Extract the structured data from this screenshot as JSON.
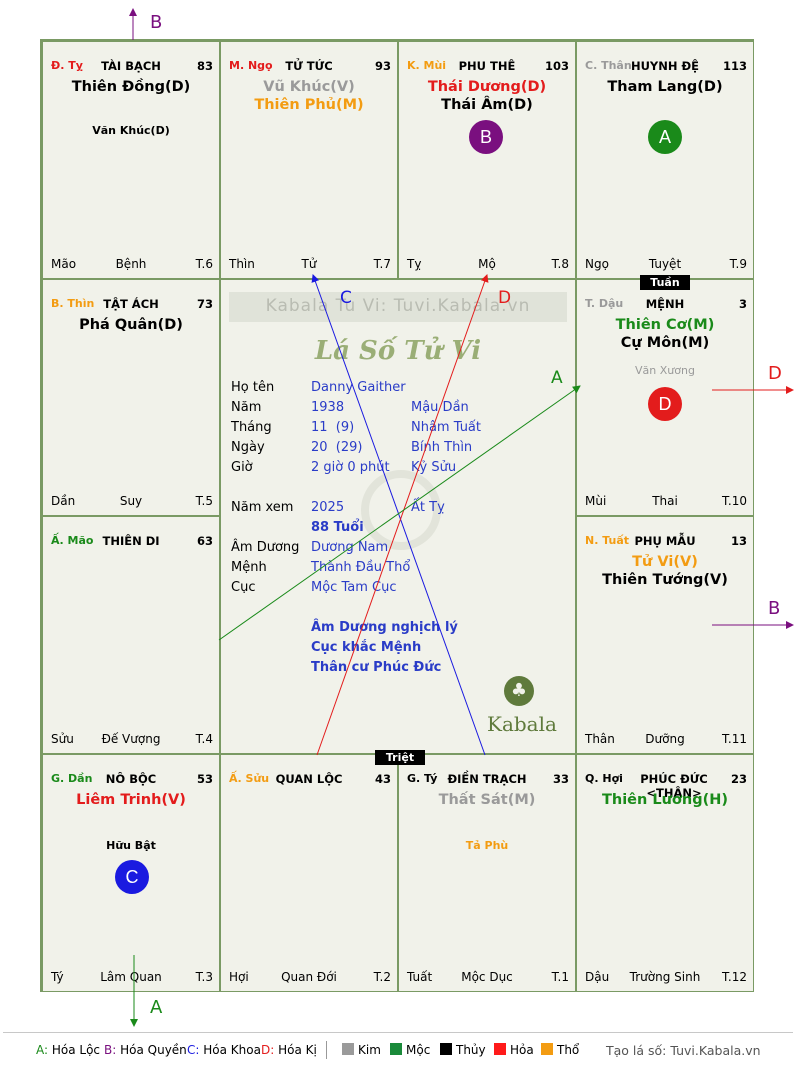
{
  "palaces": [
    {
      "key": "ty",
      "can": "Đ. Tỵ",
      "can_color": "#e31c1c",
      "name": "TÀI BẠCH",
      "num": "83",
      "stars": [
        {
          "t": "Thiên Đồng(D)",
          "c": "#000000"
        }
      ],
      "minor": [
        {
          "t": "Văn Khúc(D)",
          "c": "#000000"
        }
      ],
      "bl": "Mão",
      "bm": "Bệnh",
      "br": "T.6"
    },
    {
      "key": "ngo",
      "can": "M. Ngọ",
      "can_color": "#e31c1c",
      "name": "TỬ TỨC",
      "num": "93",
      "stars": [
        {
          "t": "Vũ Khúc(V)",
          "c": "#9a9a9a"
        },
        {
          "t": "Thiên Phủ(M)",
          "c": "#f39c12"
        }
      ],
      "minor": [],
      "bl": "Thìn",
      "bm": "Tử",
      "br": "T.7"
    },
    {
      "key": "mui",
      "can": "K. Mùi",
      "can_color": "#f39c12",
      "name": "PHU THÊ",
      "num": "103",
      "stars": [
        {
          "t": "Thái Dương(D)",
          "c": "#e31c1c"
        },
        {
          "t": "Thái Âm(D)",
          "c": "#000000"
        }
      ],
      "minor": [],
      "bl": "Tỵ",
      "bm": "Mộ",
      "br": "T.8"
    },
    {
      "key": "than",
      "can": "C. Thân",
      "can_color": "#9a9a9a",
      "name": "HUYNH ĐỆ",
      "num": "113",
      "stars": [
        {
          "t": "Tham Lang(D)",
          "c": "#000000"
        }
      ],
      "minor": [],
      "bl": "Ngọ",
      "bm": "Tuyệt",
      "br": "T.9"
    },
    {
      "key": "thin",
      "can": "B. Thìn",
      "can_color": "#f39c12",
      "name": "TẬT ÁCH",
      "num": "73",
      "stars": [
        {
          "t": "Phá Quân(D)",
          "c": "#000000"
        }
      ],
      "minor": [],
      "bl": "Dần",
      "bm": "Suy",
      "br": "T.5"
    },
    {
      "key": "dau",
      "can": "T. Dậu",
      "can_color": "#9a9a9a",
      "name": "MỆNH",
      "num": "3",
      "stars": [
        {
          "t": "Thiên Cơ(M)",
          "c": "#1a8a1a"
        },
        {
          "t": "Cự Môn(M)",
          "c": "#000000"
        }
      ],
      "minor": [
        {
          "t": "Văn Xương",
          "c": "#9a9a9a"
        }
      ],
      "bl": "Mùi",
      "bm": "Thai",
      "br": "T.10"
    },
    {
      "key": "mao",
      "can": "Ấ. Mão",
      "can_color": "#1a8a1a",
      "name": "THIÊN DI",
      "num": "63",
      "stars": [],
      "minor": [],
      "bl": "Sửu",
      "bm": "Đế Vượng",
      "br": "T.4"
    },
    {
      "key": "tuat",
      "can": "N. Tuất",
      "can_color": "#f39c12",
      "name": "PHỤ MẪU",
      "num": "13",
      "stars": [
        {
          "t": "Tử Vi(V)",
          "c": "#f39c12"
        },
        {
          "t": "Thiên Tướng(V)",
          "c": "#000000"
        }
      ],
      "minor": [],
      "bl": "Thân",
      "bm": "Dưỡng",
      "br": "T.11"
    },
    {
      "key": "dan",
      "can": "G. Dần",
      "can_color": "#1a8a1a",
      "name": "NÔ BỘC",
      "num": "53",
      "stars": [
        {
          "t": "Liêm Trinh(V)",
          "c": "#e31c1c"
        }
      ],
      "minor": [
        {
          "t": "Hữu Bật",
          "c": "#000000"
        }
      ],
      "bl": "Tý",
      "bm": "Lâm Quan",
      "br": "T.3"
    },
    {
      "key": "suu",
      "can": "Ấ. Sửu",
      "can_color": "#f39c12",
      "name": "QUAN LỘC",
      "num": "43",
      "stars": [],
      "minor": [],
      "bl": "Hợi",
      "bm": "Quan Đới",
      "br": "T.2"
    },
    {
      "key": "tyy",
      "can": "G. Tý",
      "can_color": "#000000",
      "name": "ĐIỀN TRẠCH",
      "num": "33",
      "stars": [
        {
          "t": "Thất Sát(M)",
          "c": "#9a9a9a"
        }
      ],
      "minor": [
        {
          "t": "Tả Phù",
          "c": "#f39c12"
        }
      ],
      "bl": "Tuất",
      "bm": "Mộc Dục",
      "br": "T.1"
    },
    {
      "key": "hoi",
      "can": "Q. Hợi",
      "can_color": "#000000",
      "name": "PHÚC ĐỨC <THÂN>",
      "num": "23",
      "stars": [
        {
          "t": "Thiên Lương(H)",
          "c": "#1a8a1a"
        }
      ],
      "minor": [],
      "bl": "Dậu",
      "bm": "Trường Sinh",
      "br": "T.12"
    }
  ],
  "tags": {
    "tuan": "Tuần",
    "triet": "Triệt"
  },
  "circles": {
    "b": "B",
    "a": "A",
    "d": "D",
    "c": "C"
  },
  "arrows": {
    "top": "B",
    "right_d": "D",
    "right_b": "B",
    "bottom": "A",
    "line_c": "C",
    "line_d": "D",
    "line_a": "A"
  },
  "center": {
    "watermark": "Kabala Tu Vi: Tuvi.Kabala.vn",
    "logo_title": "Lá Số Tử Vi",
    "rows": [
      {
        "label": "Họ tên",
        "v1": "Danny Gaither",
        "v2": ""
      },
      {
        "label": "Năm",
        "v1": "1938",
        "v2": "Mậu Dần"
      },
      {
        "label": "Tháng",
        "v1": "11  (9)",
        "v2": "Nhâm Tuất"
      },
      {
        "label": "Ngày",
        "v1": "20  (29)",
        "v2": "Bính Thìn"
      },
      {
        "label": "Giờ",
        "v1": "2 giờ 0 phút",
        "v2": "Kỷ Sửu"
      }
    ],
    "namxem": {
      "label": "Năm xem",
      "v1": "2025",
      "v2": "Ất Tỵ"
    },
    "tuoi": "88 Tuổi",
    "rows2": [
      {
        "label": "Âm Dương",
        "v1": "Dương Nam"
      },
      {
        "label": "Mệnh",
        "v1": "Thành Đầu Thổ"
      },
      {
        "label": "Cục",
        "v1": "Mộc Tam Cục"
      }
    ],
    "notes": [
      "Âm Dương nghịch lý",
      "Cục khắc Mệnh",
      "Thân cư Phúc Đức"
    ],
    "brand": "Kabala"
  },
  "legend": {
    "items": [
      {
        "k": "A:",
        "v": "Hóa Lộc",
        "c": "#1a8a1a"
      },
      {
        "k": "B:",
        "v": "Hóa Quyền",
        "c": "#7a0f7f"
      },
      {
        "k": "C:",
        "v": "Hóa Khoa",
        "c": "#1a1ae0"
      },
      {
        "k": "D:",
        "v": "Hóa Kị",
        "c": "#e31c1c"
      }
    ],
    "elements": [
      {
        "name": "Kim",
        "c": "#9a9a9a"
      },
      {
        "name": "Mộc",
        "c": "#1a8a3a"
      },
      {
        "name": "Thủy",
        "c": "#000000"
      },
      {
        "name": "Hỏa",
        "c": "#ff1a1a"
      },
      {
        "name": "Thổ",
        "c": "#f39c12"
      }
    ],
    "credit": "Tạo lá số: Tuvi.Kabala.vn"
  }
}
